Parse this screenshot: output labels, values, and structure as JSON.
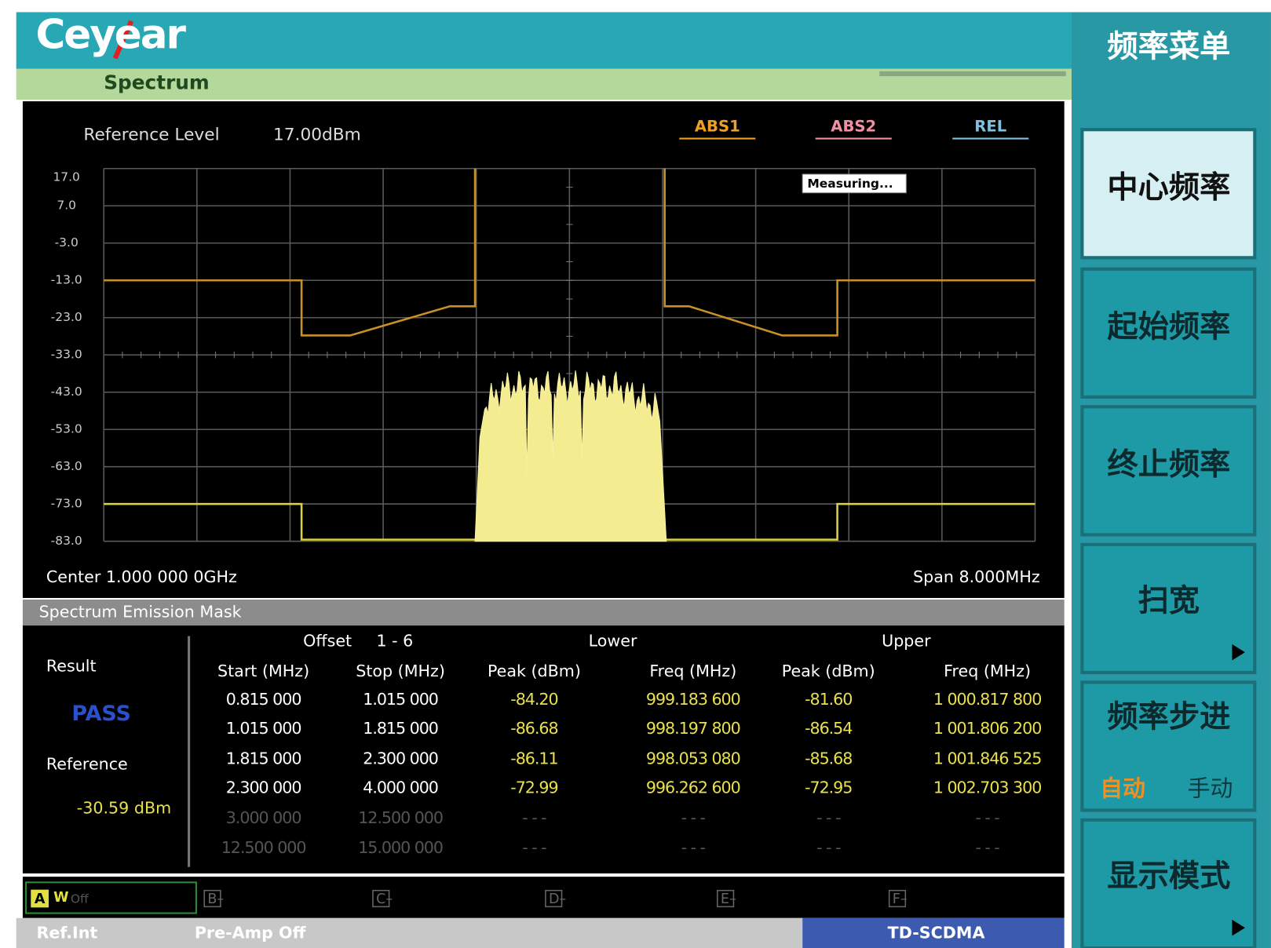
{
  "header": {
    "logo": "Ceyear",
    "mode": "Spectrum"
  },
  "display": {
    "reference_level_label": "Reference Level",
    "reference_level": "17.00dBm",
    "traces": [
      "ABS1",
      "ABS2",
      "REL"
    ],
    "y_axis_labels": [
      "17.0",
      "7.0",
      "-3.0",
      "-13.0",
      "-23.0",
      "-33.0",
      "-43.0",
      "-53.0",
      "-63.0",
      "-73.0",
      "-83.0"
    ],
    "status": "Measuring...",
    "center": "Center 1.000 000 0GHz",
    "span": "Span 8.000MHz"
  },
  "results": {
    "title": "Spectrum Emission Mask",
    "result_label": "Result",
    "result": "PASS",
    "reference_label": "Reference",
    "reference": "-30.59 dBm",
    "offset_label": "Offset",
    "offset_range": "1 - 6",
    "lower": "Lower",
    "upper": "Upper",
    "columns": [
      "Start (MHz)",
      "Stop (MHz)",
      "Peak (dBm)",
      "Freq (MHz)",
      "Peak (dBm)",
      "Freq (MHz)"
    ],
    "rows": [
      [
        "0.815 000",
        "1.015 000",
        "-84.20",
        "999.183 600",
        "-81.60",
        "1 000.817 800"
      ],
      [
        "1.015 000",
        "1.815 000",
        "-86.68",
        "998.197 800",
        "-86.54",
        "1 001.806 200"
      ],
      [
        "1.815 000",
        "2.300 000",
        "-86.11",
        "998.053 080",
        "-85.68",
        "1 001.846 525"
      ],
      [
        "2.300 000",
        "4.000 000",
        "-72.99",
        "996.262 600",
        "-72.95",
        "1 002.703 300"
      ],
      [
        "3.000 000",
        "12.500 000",
        "- - -",
        "- - -",
        "- - -",
        "- - -"
      ],
      [
        "12.500 000",
        "15.000 000",
        "- - -",
        "- - -",
        "- - -",
        "- - -"
      ]
    ]
  },
  "markers": {
    "active": "A",
    "active_type": "W",
    "active_state": "Off",
    "others": [
      "B–",
      "C–",
      "D–",
      "E–",
      "F–"
    ]
  },
  "status_bar": {
    "reference": "Ref.Int",
    "preamp": "Pre-Amp Off",
    "standard": "TD-SCDMA"
  },
  "menu": {
    "title": "频率菜单",
    "buttons": [
      "中心频率",
      "起始频率",
      "终止频率",
      "扫宽",
      "频率步进",
      "显示模式"
    ],
    "step_options": [
      "自动",
      "手动"
    ]
  }
}
